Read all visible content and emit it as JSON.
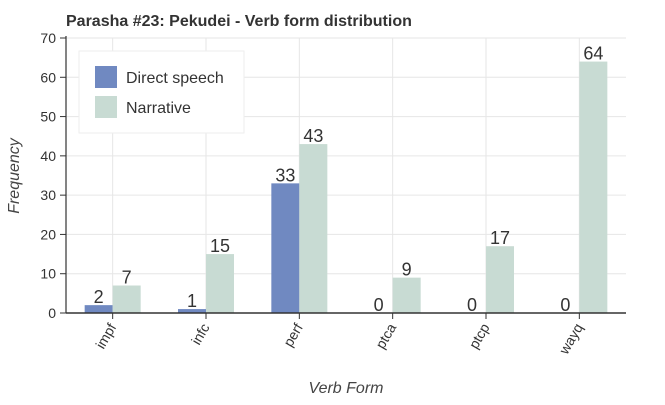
{
  "chart_data": {
    "type": "bar",
    "title": "Parasha #23: Pekudei - Verb form distribution",
    "xlabel": "Verb Form",
    "ylabel": "Frequency",
    "ylim": [
      0,
      70
    ],
    "yticks": [
      0,
      10,
      20,
      30,
      40,
      50,
      60,
      70
    ],
    "grid": true,
    "legend_position": "top-left",
    "categories": [
      "impf",
      "infc",
      "perf",
      "ptca",
      "ptcp",
      "wayq"
    ],
    "series": [
      {
        "name": "Direct speech",
        "color": "#7089c1",
        "values": [
          2,
          1,
          33,
          0,
          0,
          0
        ]
      },
      {
        "name": "Narrative",
        "color": "#c8dbd3",
        "values": [
          7,
          15,
          43,
          9,
          17,
          64
        ]
      }
    ]
  }
}
